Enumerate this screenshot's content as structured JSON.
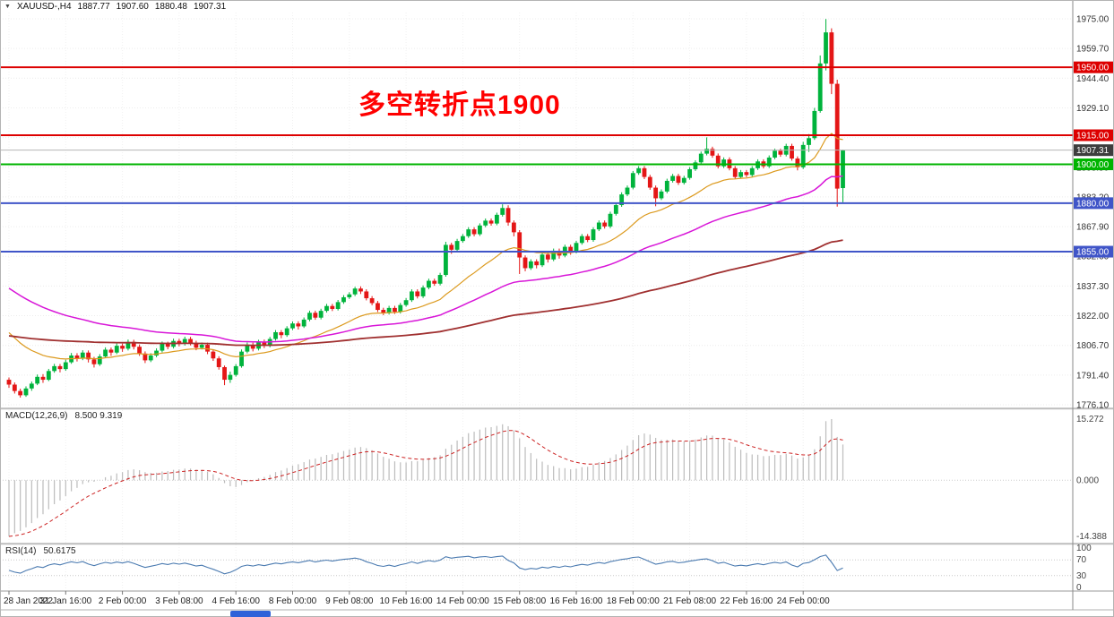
{
  "header": {
    "symbol_period": "XAUUSD-,H4",
    "open": "1887.77",
    "high": "1907.60",
    "low": "1880.48",
    "close": "1907.31"
  },
  "annotation": {
    "text": "多空转折点1900",
    "color": "#ff0000"
  },
  "taskbar": {
    "indicator_color": "#2f62d9"
  },
  "chart_data": {
    "type": "candlestick",
    "symbol": "XAUUSD-",
    "timeframe": "H4",
    "up_color": "#00b33c",
    "down_color": "#e41616",
    "time_axis": {
      "step": 10,
      "labels": [
        "28 Jan 2022",
        "31 Jan 16:00",
        "2 Feb 00:00",
        "3 Feb 08:00",
        "4 Feb 16:00",
        "8 Feb 00:00",
        "9 Feb 08:00",
        "10 Feb 16:00",
        "14 Feb 00:00",
        "15 Feb 08:00",
        "16 Feb 16:00",
        "18 Feb 00:00",
        "21 Feb 08:00",
        "22 Feb 16:00",
        "24 Feb 00:00"
      ]
    },
    "y_axis": {
      "values": [
        1975.0,
        1959.7,
        1944.4,
        1929.1,
        1913.8,
        1898.5,
        1883.2,
        1867.9,
        1852.6,
        1837.3,
        1822.0,
        1806.7,
        1791.4,
        1776.1
      ],
      "labels": [
        "1975.00",
        "1959.70",
        "1944.40",
        "1929.10",
        "1913.80",
        "1898.50",
        "1883.20",
        "1867.90",
        "1852.60",
        "1837.30",
        "1822.00",
        "1806.70",
        "1791.40",
        "1776.10"
      ]
    },
    "hlines": [
      {
        "price": 1950.0,
        "label": "1950.00",
        "color": "#dd0000"
      },
      {
        "price": 1915.0,
        "label": "1915.00",
        "color": "#dd0000"
      },
      {
        "price": 1900.0,
        "label": "1900.00",
        "color": "#00b400"
      },
      {
        "price": 1880.0,
        "label": "1880.00",
        "color": "#4055c8"
      },
      {
        "price": 1855.0,
        "label": "1855.00",
        "color": "#4055c8"
      }
    ],
    "current_price": {
      "price": 1907.31,
      "label": "1907.31",
      "badge_color": "#3d3d3d",
      "line_color": "#b6b6b6"
    },
    "moving_averages": [
      {
        "name": "ma-fast",
        "color": "#dc9a1e",
        "period": 21,
        "seed": 1816,
        "width": 1.2
      },
      {
        "name": "ma-medium",
        "color": "#d816d8",
        "period": 55,
        "seed": 1838,
        "width": 1.5
      },
      {
        "name": "ma-slow",
        "color": "#a03030",
        "period": 150,
        "seed": 1812,
        "width": 1.8
      }
    ],
    "candles": [
      [
        1789.0,
        1790.2,
        1784.8,
        1786.5
      ],
      [
        1786.5,
        1787.6,
        1781.9,
        1783.2
      ],
      [
        1783.2,
        1784.4,
        1779.8,
        1781.0
      ],
      [
        1781.0,
        1785.6,
        1780.2,
        1784.5
      ],
      [
        1784.5,
        1788.1,
        1783.3,
        1787.0
      ],
      [
        1787.0,
        1791.7,
        1786.2,
        1790.5
      ],
      [
        1790.5,
        1791.9,
        1787.4,
        1789.0
      ],
      [
        1789.0,
        1794.6,
        1788.3,
        1793.5
      ],
      [
        1793.5,
        1797.2,
        1792.6,
        1796.0
      ],
      [
        1796.0,
        1797.1,
        1792.8,
        1794.5
      ],
      [
        1794.5,
        1799.3,
        1793.6,
        1798.0
      ],
      [
        1798.0,
        1802.8,
        1797.2,
        1801.5
      ],
      [
        1801.5,
        1802.7,
        1798.4,
        1800.0
      ],
      [
        1800.0,
        1804.2,
        1799.1,
        1803.0
      ],
      [
        1803.0,
        1804.1,
        1797.9,
        1799.5
      ],
      [
        1799.5,
        1800.8,
        1795.3,
        1797.0
      ],
      [
        1797.0,
        1802.2,
        1796.1,
        1801.0
      ],
      [
        1801.0,
        1805.7,
        1800.2,
        1804.5
      ],
      [
        1804.5,
        1805.6,
        1801.3,
        1803.0
      ],
      [
        1803.0,
        1807.7,
        1802.2,
        1806.5
      ],
      [
        1806.5,
        1807.6,
        1803.4,
        1805.0
      ],
      [
        1805.0,
        1809.7,
        1804.1,
        1808.5
      ],
      [
        1808.5,
        1809.6,
        1804.6,
        1806.0
      ],
      [
        1806.0,
        1807.2,
        1801.3,
        1802.5
      ],
      [
        1802.5,
        1803.6,
        1797.6,
        1799.0
      ],
      [
        1799.0,
        1802.7,
        1798.1,
        1801.5
      ],
      [
        1801.5,
        1805.2,
        1800.6,
        1804.0
      ],
      [
        1804.0,
        1808.7,
        1803.1,
        1807.5
      ],
      [
        1807.5,
        1808.6,
        1804.7,
        1806.0
      ],
      [
        1806.0,
        1810.2,
        1805.1,
        1809.0
      ],
      [
        1809.0,
        1810.1,
        1806.2,
        1807.5
      ],
      [
        1807.5,
        1811.2,
        1806.6,
        1810.0
      ],
      [
        1810.0,
        1811.1,
        1806.7,
        1808.0
      ],
      [
        1808.0,
        1809.1,
        1804.2,
        1805.5
      ],
      [
        1805.5,
        1808.2,
        1804.6,
        1807.0
      ],
      [
        1807.0,
        1808.1,
        1802.2,
        1803.5
      ],
      [
        1803.5,
        1804.6,
        1798.7,
        1800.0
      ],
      [
        1800.0,
        1801.1,
        1794.2,
        1795.5
      ],
      [
        1795.5,
        1796.3,
        1786.2,
        1789.0
      ],
      [
        1789.0,
        1793.2,
        1787.4,
        1791.5
      ],
      [
        1791.5,
        1797.1,
        1790.6,
        1796.0
      ],
      [
        1796.0,
        1804.6,
        1795.2,
        1803.5
      ],
      [
        1803.5,
        1808.2,
        1802.6,
        1807.0
      ],
      [
        1807.0,
        1808.1,
        1803.6,
        1805.0
      ],
      [
        1805.0,
        1809.6,
        1804.1,
        1808.5
      ],
      [
        1808.5,
        1809.7,
        1805.3,
        1806.5
      ],
      [
        1806.5,
        1811.1,
        1805.7,
        1810.0
      ],
      [
        1810.0,
        1814.6,
        1809.2,
        1813.5
      ],
      [
        1813.5,
        1814.6,
        1810.4,
        1812.0
      ],
      [
        1812.0,
        1816.6,
        1811.1,
        1815.5
      ],
      [
        1815.5,
        1819.1,
        1814.6,
        1818.0
      ],
      [
        1818.0,
        1819.1,
        1814.9,
        1816.5
      ],
      [
        1816.5,
        1821.1,
        1815.7,
        1820.0
      ],
      [
        1820.0,
        1824.6,
        1819.1,
        1823.5
      ],
      [
        1823.5,
        1824.6,
        1819.9,
        1821.0
      ],
      [
        1821.0,
        1825.6,
        1820.1,
        1824.5
      ],
      [
        1824.5,
        1828.1,
        1823.6,
        1827.0
      ],
      [
        1827.0,
        1828.1,
        1824.4,
        1825.5
      ],
      [
        1825.5,
        1830.1,
        1824.7,
        1829.0
      ],
      [
        1829.0,
        1832.6,
        1828.1,
        1831.5
      ],
      [
        1831.5,
        1834.1,
        1830.6,
        1833.0
      ],
      [
        1833.0,
        1836.9,
        1832.1,
        1836.0
      ],
      [
        1836.0,
        1837.1,
        1833.2,
        1834.5
      ],
      [
        1834.5,
        1835.6,
        1829.9,
        1831.0
      ],
      [
        1831.0,
        1832.1,
        1827.4,
        1828.5
      ],
      [
        1828.5,
        1829.6,
        1823.9,
        1825.0
      ],
      [
        1825.0,
        1826.1,
        1822.3,
        1823.5
      ],
      [
        1823.5,
        1827.1,
        1822.6,
        1826.0
      ],
      [
        1826.0,
        1827.1,
        1822.9,
        1824.0
      ],
      [
        1824.0,
        1828.6,
        1823.1,
        1827.5
      ],
      [
        1827.5,
        1831.1,
        1826.6,
        1830.0
      ],
      [
        1830.0,
        1835.6,
        1829.1,
        1834.5
      ],
      [
        1834.5,
        1835.6,
        1830.9,
        1832.0
      ],
      [
        1832.0,
        1837.6,
        1831.1,
        1836.5
      ],
      [
        1836.5,
        1841.1,
        1835.6,
        1840.0
      ],
      [
        1840.0,
        1841.1,
        1837.4,
        1838.5
      ],
      [
        1838.5,
        1844.1,
        1837.6,
        1843.0
      ],
      [
        1843.0,
        1860.1,
        1842.1,
        1858.5
      ],
      [
        1858.5,
        1859.6,
        1853.9,
        1856.0
      ],
      [
        1856.0,
        1861.6,
        1855.1,
        1860.5
      ],
      [
        1860.5,
        1864.1,
        1859.6,
        1863.0
      ],
      [
        1863.0,
        1867.6,
        1862.1,
        1866.5
      ],
      [
        1866.5,
        1867.6,
        1862.9,
        1864.0
      ],
      [
        1864.0,
        1869.6,
        1863.1,
        1868.5
      ],
      [
        1868.5,
        1872.1,
        1867.6,
        1871.0
      ],
      [
        1871.0,
        1872.1,
        1868.4,
        1869.5
      ],
      [
        1869.5,
        1875.1,
        1868.6,
        1874.0
      ],
      [
        1874.0,
        1879.4,
        1873.1,
        1877.5
      ],
      [
        1877.5,
        1878.9,
        1868.4,
        1870.0
      ],
      [
        1870.0,
        1871.1,
        1862.9,
        1865.0
      ],
      [
        1865.0,
        1866.1,
        1843.5,
        1852.0
      ],
      [
        1852.0,
        1853.1,
        1844.9,
        1846.5
      ],
      [
        1846.5,
        1851.1,
        1845.6,
        1850.0
      ],
      [
        1850.0,
        1851.1,
        1846.4,
        1848.0
      ],
      [
        1848.0,
        1854.6,
        1847.1,
        1853.5
      ],
      [
        1853.5,
        1854.6,
        1849.4,
        1851.0
      ],
      [
        1851.0,
        1856.6,
        1850.1,
        1855.5
      ],
      [
        1855.5,
        1856.6,
        1851.4,
        1853.0
      ],
      [
        1853.0,
        1858.6,
        1852.1,
        1857.5
      ],
      [
        1857.5,
        1858.6,
        1853.4,
        1855.0
      ],
      [
        1855.0,
        1860.6,
        1854.1,
        1859.5
      ],
      [
        1859.5,
        1864.1,
        1858.6,
        1863.0
      ],
      [
        1863.0,
        1864.1,
        1859.9,
        1861.0
      ],
      [
        1861.0,
        1867.6,
        1860.1,
        1866.5
      ],
      [
        1866.5,
        1871.1,
        1865.6,
        1870.0
      ],
      [
        1870.0,
        1871.1,
        1866.9,
        1868.0
      ],
      [
        1868.0,
        1875.6,
        1867.1,
        1874.5
      ],
      [
        1874.5,
        1880.1,
        1873.6,
        1879.0
      ],
      [
        1879.0,
        1885.6,
        1878.1,
        1884.5
      ],
      [
        1884.5,
        1889.1,
        1883.6,
        1888.0
      ],
      [
        1888.0,
        1896.6,
        1887.1,
        1895.5
      ],
      [
        1895.5,
        1899.1,
        1894.6,
        1898.0
      ],
      [
        1898.0,
        1899.1,
        1892.4,
        1893.5
      ],
      [
        1893.5,
        1894.6,
        1886.9,
        1888.0
      ],
      [
        1888.0,
        1889.1,
        1878.4,
        1882.5
      ],
      [
        1882.5,
        1887.1,
        1881.6,
        1886.0
      ],
      [
        1886.0,
        1892.6,
        1885.1,
        1891.5
      ],
      [
        1891.5,
        1895.1,
        1890.6,
        1894.0
      ],
      [
        1894.0,
        1895.1,
        1889.4,
        1890.5
      ],
      [
        1890.5,
        1894.1,
        1889.6,
        1893.0
      ],
      [
        1893.0,
        1898.6,
        1892.1,
        1897.5
      ],
      [
        1897.5,
        1902.1,
        1896.6,
        1901.0
      ],
      [
        1901.0,
        1906.6,
        1900.1,
        1905.5
      ],
      [
        1905.5,
        1913.9,
        1904.6,
        1908.0
      ],
      [
        1908.0,
        1909.1,
        1903.4,
        1904.5
      ],
      [
        1904.5,
        1905.6,
        1897.9,
        1899.0
      ],
      [
        1899.0,
        1903.6,
        1898.1,
        1902.5
      ],
      [
        1902.5,
        1903.6,
        1896.9,
        1898.0
      ],
      [
        1898.0,
        1899.1,
        1892.4,
        1893.5
      ],
      [
        1893.5,
        1897.1,
        1892.6,
        1896.0
      ],
      [
        1896.0,
        1897.1,
        1893.4,
        1894.5
      ],
      [
        1894.5,
        1899.1,
        1893.6,
        1898.0
      ],
      [
        1898.0,
        1902.6,
        1897.1,
        1901.5
      ],
      [
        1901.5,
        1902.6,
        1897.9,
        1899.0
      ],
      [
        1899.0,
        1904.6,
        1898.1,
        1903.5
      ],
      [
        1903.5,
        1908.1,
        1902.6,
        1907.0
      ],
      [
        1907.0,
        1908.1,
        1903.9,
        1905.0
      ],
      [
        1905.0,
        1910.6,
        1904.1,
        1909.5
      ],
      [
        1909.5,
        1910.6,
        1901.9,
        1903.0
      ],
      [
        1903.0,
        1904.1,
        1896.9,
        1898.5
      ],
      [
        1898.5,
        1911.6,
        1897.6,
        1910.0
      ],
      [
        1910.0,
        1915.6,
        1906.4,
        1913.5
      ],
      [
        1913.5,
        1929.1,
        1912.6,
        1927.5
      ],
      [
        1927.5,
        1956.1,
        1926.6,
        1952.0
      ],
      [
        1952.0,
        1974.9,
        1948.4,
        1968.0
      ],
      [
        1968.0,
        1970.1,
        1936.2,
        1941.5
      ],
      [
        1941.5,
        1943.6,
        1878.2,
        1887.5
      ],
      [
        1887.77,
        1907.6,
        1880.48,
        1907.31
      ]
    ],
    "macd": {
      "title": "MACD(12,26,9)",
      "values": "8.500 9.319",
      "fast": 12,
      "slow": 26,
      "signal_period": 9,
      "seed_fast": 1786,
      "seed_slow": 1800,
      "axis_labels": {
        "max": "15.272",
        "zero": "0.000",
        "min": "-14.388"
      },
      "hist_color": "#bcbcbc",
      "signal_color": "#cc2222"
    },
    "rsi": {
      "title": "RSI(14)",
      "value": "50.6175",
      "period": 14,
      "line_color": "#4a7ab0",
      "levels": [
        {
          "v": 100,
          "label": "100"
        },
        {
          "v": 70,
          "label": "70"
        },
        {
          "v": 30,
          "label": "30"
        },
        {
          "v": 0,
          "label": "0"
        }
      ]
    }
  }
}
